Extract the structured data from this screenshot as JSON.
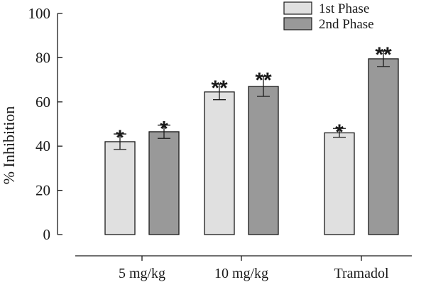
{
  "chart_data": {
    "type": "bar",
    "title": "",
    "xlabel": "",
    "ylabel": "% Inhibition",
    "ylim": [
      0,
      100
    ],
    "yticks": [
      0,
      20,
      40,
      60,
      80,
      100
    ],
    "categories": [
      "5 mg/kg",
      "10 mg/kg",
      "Tramadol"
    ],
    "series": [
      {
        "name": "1st Phase",
        "color": "#e0e0e0",
        "values": [
          42,
          64.5,
          46
        ],
        "errors": [
          3.5,
          3.5,
          2
        ],
        "significance": [
          "*",
          "**",
          "*"
        ]
      },
      {
        "name": "2nd Phase",
        "color": "#999999",
        "values": [
          46.5,
          67,
          79.5
        ],
        "errors": [
          3,
          4.5,
          3.5
        ],
        "significance": [
          "*",
          "**",
          "**"
        ]
      }
    ],
    "legend": "top-right",
    "grid": false
  }
}
